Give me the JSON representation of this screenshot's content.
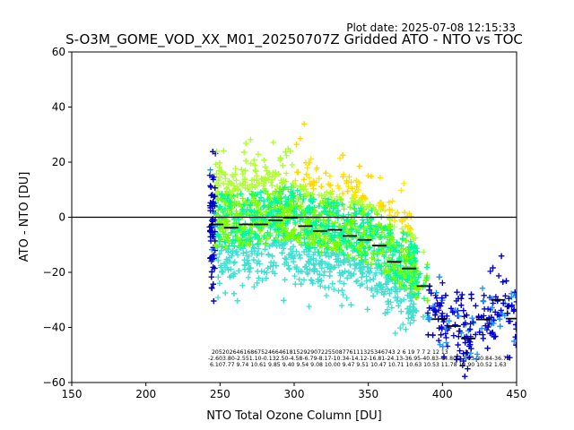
{
  "plot_date": "Plot date: 2025-07-08 12:15:33",
  "colors": {
    "series": [
      "#0000cd",
      "#1e90ff",
      "#40e0d0",
      "#00fa9a",
      "#7cfc00",
      "#adff2f",
      "#ffd700",
      "#ffe600"
    ],
    "binned_median": "#000000",
    "zero_line": "#000000"
  },
  "chart_data": {
    "type": "scatter",
    "title": "S-O3M_GOME_VOD_XX_M01_20250707Z Gridded ATO - NTO vs TOC",
    "xlabel": "NTO Total Ozone Column [DU]",
    "ylabel": "ATO - NTO [DU]",
    "xlim": [
      150,
      450
    ],
    "ylim": [
      -60,
      60
    ],
    "xticks": [
      "150",
      "200",
      "250",
      "300",
      "350",
      "400",
      "450"
    ],
    "yticks": [
      "−60",
      "−40",
      "−20",
      "0",
      "20",
      "40",
      "60"
    ],
    "xtick_values": [
      150,
      200,
      250,
      300,
      350,
      400,
      450
    ],
    "ytick_values": [
      -60,
      -40,
      -20,
      0,
      20,
      40,
      60
    ],
    "marker": "+",
    "grid": false,
    "zero_line_y": 0,
    "binned_median": {
      "x": [
        247.5,
        257.5,
        267.5,
        277.5,
        287.5,
        297.5,
        307.5,
        317.5,
        327.5,
        337.5,
        347.5,
        357.5,
        367.5,
        377.5,
        387.5,
        397.5,
        407.5,
        417.5,
        427.5,
        437.5,
        447.5
      ],
      "y": [
        -2.6,
        -3.8,
        -2.6,
        -2.6,
        -1.1,
        -0.1,
        -3.2,
        -5.0,
        -4.6,
        -6.8,
        -8.2,
        -10.3,
        -16.2,
        -18.6,
        -25.0,
        -37.0,
        -39.5,
        -44.0,
        -37.1,
        -30.0,
        -36.8
      ]
    },
    "bin_stats": {
      "row1": "2052026461686752466461815292907225508776111325346743   2 6    19      7 7 2        12 13",
      "row2": "-2.603.80-2.551.10-0.132.50-4.58-6.79-8.17-10.34-14.12-16.81-24.13-36.95-40.83-44.80-37.03-30.84-36.79",
      "row3": "6.107.77 9.74 10.61 9.85 9.40 9.54 9.08 10.00 9.47 9.51 10.47 10.71 10.63 10.53 11.78 12.90 10.52 1.63"
    }
  }
}
